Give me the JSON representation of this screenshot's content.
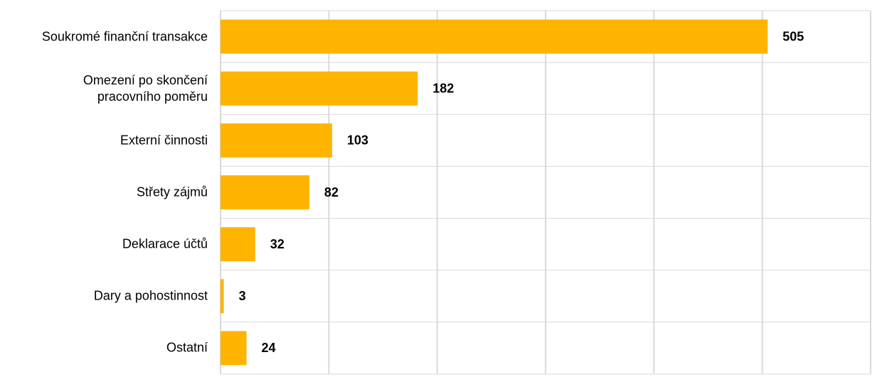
{
  "chart_data": {
    "type": "bar",
    "orientation": "horizontal",
    "categories": [
      "Soukromé finanční transakce",
      "Omezení po skončení\npracovního poměru",
      "Externí činnosti",
      "Střety zájmů",
      "Deklarace účtů",
      "Dary a pohostinnost",
      "Ostatní"
    ],
    "values": [
      505,
      182,
      103,
      82,
      32,
      3,
      24
    ],
    "color": "#ffb400",
    "xlim": [
      0,
      600
    ],
    "xticks": [
      0,
      100,
      200,
      300,
      400,
      500,
      600
    ],
    "grid": true
  }
}
